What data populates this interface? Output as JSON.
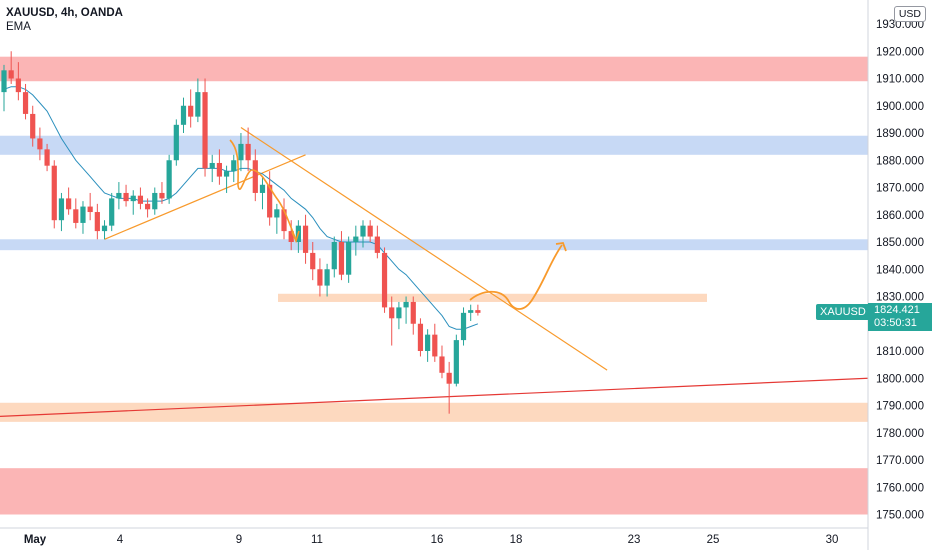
{
  "header": {
    "title": "XAUUSD, 4h, OANDA",
    "indicator": "EMA"
  },
  "currency": "USD",
  "last_price": {
    "symbol": "XAUUSD",
    "price": "1824.421",
    "countdown": "03:50:31"
  },
  "colors": {
    "up": "#26a69a",
    "down": "#ef5350",
    "ema": "#2a8fbd",
    "resistance_red": "#fbb5b5",
    "support_blue": "#c7d9f5",
    "orange_zone": "#fdd9bf",
    "orange_line": "#f89a2c",
    "red_line": "#e53935",
    "axis_text": "#131722",
    "axis_line": "#d1d4dc"
  },
  "chart_data": {
    "type": "candlestick",
    "symbol": "XAUUSD",
    "timeframe": "4h",
    "source": "OANDA",
    "y_axis": {
      "ticks": [
        "1930.000",
        "1920.000",
        "1910.000",
        "1900.000",
        "1890.000",
        "1880.000",
        "1870.000",
        "1860.000",
        "1850.000",
        "1840.000",
        "1830.000",
        "1820.000",
        "1810.000",
        "1800.000",
        "1790.000",
        "1780.000",
        "1770.000",
        "1760.000",
        "1750.000"
      ],
      "range": [
        1746,
        1932
      ]
    },
    "x_axis": {
      "ticks": [
        "May",
        "4",
        "9",
        "11",
        "16",
        "18",
        "23",
        "25",
        "30"
      ]
    },
    "zones": [
      {
        "label": "resistance",
        "from": 1909,
        "to": 1918,
        "color": "resistance_red"
      },
      {
        "label": "resistance",
        "from": 1882,
        "to": 1889,
        "color": "support_blue"
      },
      {
        "label": "support",
        "from": 1847,
        "to": 1851,
        "color": "support_blue"
      },
      {
        "label": "supply",
        "from": 1828,
        "to": 1831,
        "color": "orange_zone",
        "partial": true
      },
      {
        "label": "demand",
        "from": 1784,
        "to": 1791,
        "color": "orange_zone"
      },
      {
        "label": "demand",
        "from": 1750,
        "to": 1767,
        "color": "resistance_red"
      }
    ],
    "candles": [
      [
        1905,
        1915,
        1898,
        1913
      ],
      [
        1913,
        1920,
        1908,
        1910
      ],
      [
        1910,
        1916,
        1902,
        1905
      ],
      [
        1905,
        1908,
        1895,
        1897
      ],
      [
        1897,
        1900,
        1885,
        1888
      ],
      [
        1888,
        1892,
        1880,
        1884
      ],
      [
        1884,
        1886,
        1876,
        1878
      ],
      [
        1878,
        1880,
        1855,
        1858
      ],
      [
        1858,
        1868,
        1854,
        1866
      ],
      [
        1866,
        1870,
        1860,
        1862
      ],
      [
        1862,
        1866,
        1855,
        1857
      ],
      [
        1857,
        1865,
        1853,
        1863
      ],
      [
        1863,
        1868,
        1858,
        1861
      ],
      [
        1861,
        1864,
        1851,
        1854
      ],
      [
        1854,
        1858,
        1851,
        1856
      ],
      [
        1856,
        1868,
        1854,
        1866
      ],
      [
        1866,
        1872,
        1862,
        1868
      ],
      [
        1868,
        1871,
        1863,
        1865
      ],
      [
        1865,
        1869,
        1860,
        1867
      ],
      [
        1867,
        1870,
        1862,
        1864
      ],
      [
        1864,
        1866,
        1859,
        1862
      ],
      [
        1862,
        1870,
        1860,
        1868
      ],
      [
        1868,
        1872,
        1864,
        1866
      ],
      [
        1866,
        1882,
        1864,
        1880
      ],
      [
        1880,
        1895,
        1878,
        1893
      ],
      [
        1893,
        1903,
        1890,
        1900
      ],
      [
        1900,
        1906,
        1892,
        1896
      ],
      [
        1896,
        1910,
        1894,
        1905
      ],
      [
        1905,
        1910,
        1874,
        1877
      ],
      [
        1877,
        1882,
        1872,
        1879
      ],
      [
        1879,
        1884,
        1871,
        1874
      ],
      [
        1874,
        1878,
        1868,
        1876
      ],
      [
        1876,
        1882,
        1872,
        1880
      ],
      [
        1880,
        1890,
        1876,
        1886
      ],
      [
        1886,
        1892,
        1876,
        1880
      ],
      [
        1880,
        1884,
        1865,
        1868
      ],
      [
        1868,
        1874,
        1862,
        1871
      ],
      [
        1871,
        1876,
        1856,
        1859
      ],
      [
        1859,
        1864,
        1853,
        1862
      ],
      [
        1862,
        1866,
        1851,
        1854
      ],
      [
        1854,
        1858,
        1847,
        1850
      ],
      [
        1850,
        1858,
        1846,
        1856
      ],
      [
        1856,
        1860,
        1842,
        1846
      ],
      [
        1846,
        1850,
        1836,
        1840
      ],
      [
        1840,
        1844,
        1830,
        1834
      ],
      [
        1834,
        1842,
        1830,
        1840
      ],
      [
        1840,
        1852,
        1837,
        1850
      ],
      [
        1850,
        1854,
        1836,
        1838
      ],
      [
        1838,
        1852,
        1835,
        1850
      ],
      [
        1850,
        1856,
        1845,
        1852
      ],
      [
        1852,
        1858,
        1848,
        1856
      ],
      [
        1856,
        1858,
        1850,
        1852
      ],
      [
        1852,
        1856,
        1844,
        1846
      ],
      [
        1846,
        1848,
        1824,
        1826
      ],
      [
        1826,
        1830,
        1812,
        1822
      ],
      [
        1822,
        1828,
        1818,
        1826
      ],
      [
        1826,
        1830,
        1820,
        1828
      ],
      [
        1828,
        1830,
        1816,
        1820
      ],
      [
        1820,
        1822,
        1808,
        1810
      ],
      [
        1810,
        1818,
        1806,
        1816
      ],
      [
        1816,
        1820,
        1806,
        1808
      ],
      [
        1808,
        1812,
        1800,
        1802
      ],
      [
        1802,
        1806,
        1787,
        1798
      ],
      [
        1798,
        1816,
        1797,
        1814
      ],
      [
        1814,
        1826,
        1812,
        1824
      ],
      [
        1824,
        1827,
        1821,
        1825
      ],
      [
        1825,
        1827,
        1823,
        1824
      ]
    ],
    "ema": [
      1906,
      1907,
      1907,
      1906,
      1904,
      1901,
      1898,
      1893,
      1888,
      1884,
      1880,
      1877,
      1874,
      1871,
      1868,
      1867,
      1866,
      1866,
      1866,
      1865,
      1865,
      1865,
      1865,
      1866,
      1868,
      1871,
      1874,
      1877,
      1877,
      1877,
      1877,
      1876,
      1876,
      1877,
      1877,
      1876,
      1875,
      1873,
      1871,
      1869,
      1866,
      1864,
      1862,
      1859,
      1855,
      1852,
      1851,
      1850,
      1850,
      1850,
      1850,
      1850,
      1849,
      1846,
      1843,
      1840,
      1838,
      1835,
      1832,
      1829,
      1826,
      1823,
      1819,
      1818,
      1818,
      1819,
      1820
    ],
    "drawings": [
      {
        "kind": "trendline",
        "color": "orange_line",
        "from": [
          14,
          1851
        ],
        "to": [
          42,
          1882
        ]
      },
      {
        "kind": "trendline",
        "color": "orange_line",
        "from": [
          33,
          1892
        ],
        "to": [
          84,
          1803
        ]
      },
      {
        "kind": "trendline",
        "color": "red_line",
        "from": [
          0,
          1786
        ],
        "to": [
          120,
          1800
        ]
      },
      {
        "kind": "projection_arrow",
        "color": "orange_line"
      },
      {
        "kind": "curved_path",
        "color": "orange_line"
      }
    ]
  }
}
